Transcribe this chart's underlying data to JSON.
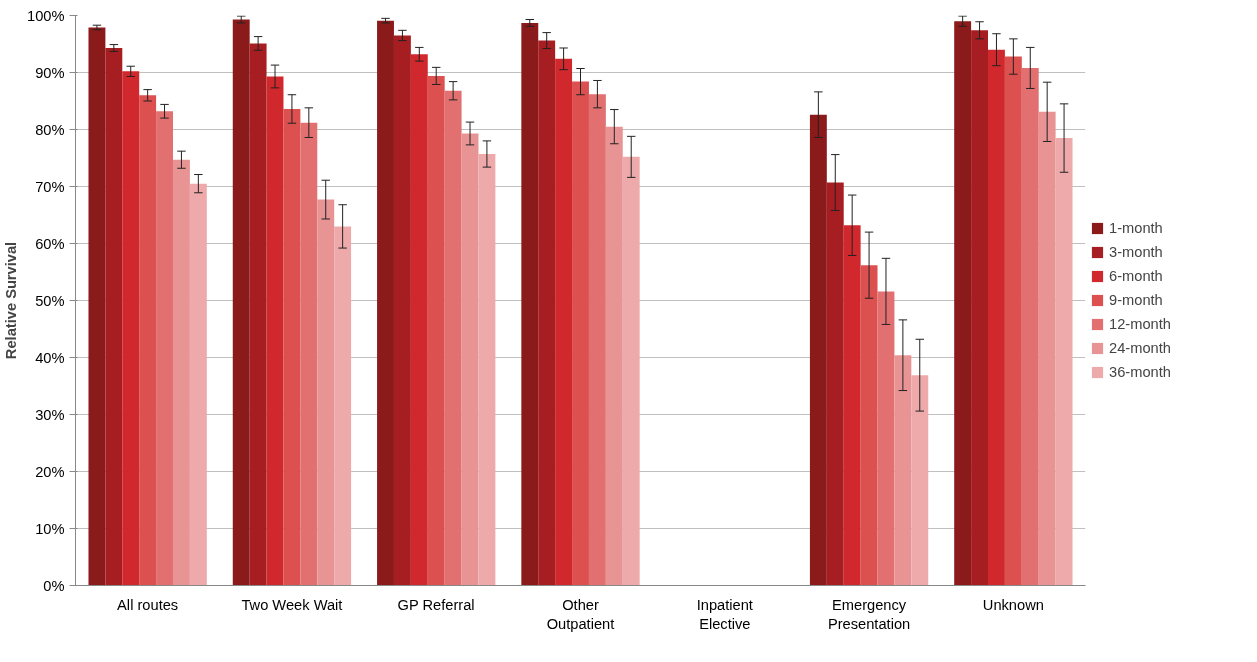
{
  "chart_data": {
    "type": "bar",
    "ylabel": "Relative Survival",
    "categories": [
      "All routes",
      "Two Week Wait",
      "GP Referral",
      "Other\nOutpatient",
      "Inpatient\nElective",
      "Emergency\nPresentation",
      "Unknown"
    ],
    "series": [
      {
        "name": "1-month",
        "color": "#8b1a1a",
        "values": [
          97.9,
          99.3,
          99.1,
          98.7,
          null,
          82.6,
          99.0
        ],
        "errors": [
          0.4,
          0.6,
          0.4,
          0.6,
          null,
          4.0,
          0.9
        ]
      },
      {
        "name": "3-month",
        "color": "#a61e22",
        "values": [
          94.3,
          95.1,
          96.5,
          95.6,
          null,
          70.7,
          97.4
        ],
        "errors": [
          0.6,
          1.2,
          0.9,
          1.4,
          null,
          4.9,
          1.5
        ]
      },
      {
        "name": "6-month",
        "color": "#d0282c",
        "values": [
          90.2,
          89.3,
          93.2,
          92.4,
          null,
          63.2,
          94.0
        ],
        "errors": [
          0.9,
          2.0,
          1.2,
          1.9,
          null,
          5.3,
          2.8
        ]
      },
      {
        "name": "9-month",
        "color": "#dc5050",
        "values": [
          86.0,
          83.6,
          89.4,
          88.4,
          null,
          56.2,
          92.8
        ],
        "errors": [
          1.0,
          2.5,
          1.5,
          2.3,
          null,
          5.8,
          3.1
        ]
      },
      {
        "name": "12-month",
        "color": "#e27070",
        "values": [
          83.2,
          81.2,
          86.8,
          86.2,
          null,
          51.6,
          90.8
        ],
        "errors": [
          1.2,
          2.6,
          1.6,
          2.4,
          null,
          5.8,
          3.6
        ]
      },
      {
        "name": "24-month",
        "color": "#e99494",
        "values": [
          74.7,
          67.7,
          79.3,
          80.5,
          null,
          40.4,
          83.1
        ],
        "errors": [
          1.5,
          3.4,
          2.0,
          3.0,
          null,
          6.2,
          5.2
        ]
      },
      {
        "name": "36-month",
        "color": "#eeaaaa",
        "values": [
          70.5,
          63.0,
          75.7,
          75.2,
          null,
          36.9,
          78.5
        ],
        "errors": [
          1.6,
          3.8,
          2.3,
          3.6,
          null,
          6.3,
          6.0
        ]
      }
    ],
    "ylim": [
      0,
      100
    ],
    "yticks": [
      {
        "value": 0,
        "label": "0%"
      },
      {
        "value": 10,
        "label": "10%"
      },
      {
        "value": 20,
        "label": "20%"
      },
      {
        "value": 30,
        "label": "30%"
      },
      {
        "value": 40,
        "label": "40%"
      },
      {
        "value": 50,
        "label": "50%"
      },
      {
        "value": 60,
        "label": "60%"
      },
      {
        "value": 70,
        "label": "70%"
      },
      {
        "value": 80,
        "label": "80%"
      },
      {
        "value": 90,
        "label": "90%"
      },
      {
        "value": 100,
        "label": "100%"
      }
    ],
    "grid": "y",
    "legend": "right"
  }
}
